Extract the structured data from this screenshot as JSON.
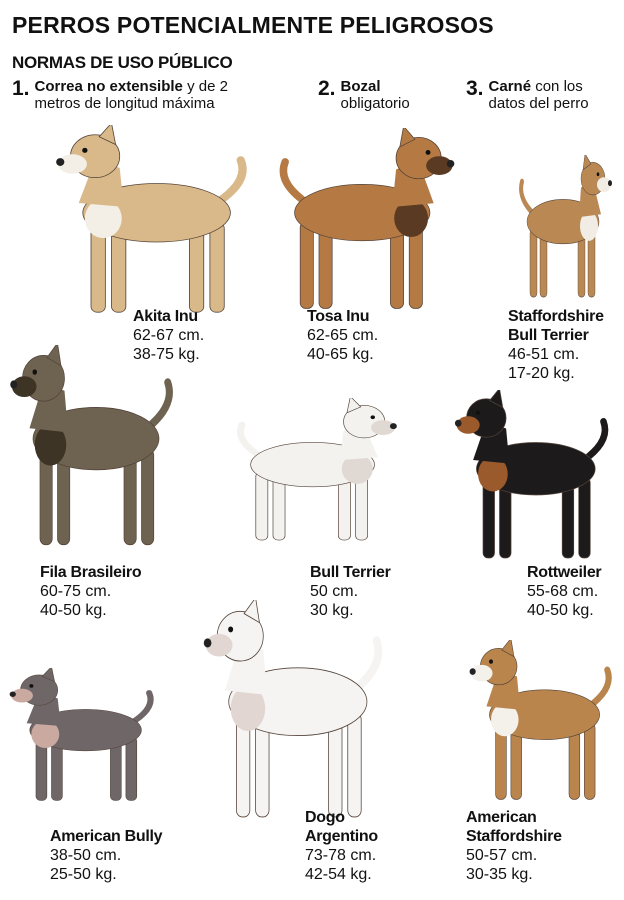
{
  "title": "PERROS POTENCIALMENTE PELIGROSOS",
  "subtitle": "NORMAS DE USO PÚBLICO",
  "rules": [
    {
      "number": "1.",
      "bold": "Correa no extensible",
      "text": " y de 2",
      "line2": "metros de longitud máxima"
    },
    {
      "number": "2.",
      "bold": "Bozal",
      "text": "",
      "line2": "obligatorio"
    },
    {
      "number": "3.",
      "bold": "Carné",
      "text": " con los",
      "line2": "datos del perro"
    }
  ],
  "dogs": [
    {
      "name": "Akita Inu",
      "height": "62-67 cm.",
      "weight": "38-75 kg.",
      "coat": "#d9b98a",
      "accent": "#f4efe6"
    },
    {
      "name": "Tosa Inu",
      "height": "62-65 cm.",
      "weight": "40-65 kg.",
      "coat": "#b57a43",
      "accent": "#5a3a22"
    },
    {
      "name": "Staffordshire Bull Terrier",
      "height": "46-51 cm.",
      "weight": "17-20 kg.",
      "coat": "#b98853",
      "accent": "#f2ede4"
    },
    {
      "name": "Fila Brasileiro",
      "height": "60-75 cm.",
      "weight": "40-50 kg.",
      "coat": "#6e6350",
      "accent": "#3d3426"
    },
    {
      "name": "Bull Terrier",
      "height": "50 cm.",
      "weight": "30 kg.",
      "coat": "#f3f2ef",
      "accent": "#e0d8d3"
    },
    {
      "name": "Rottweiler",
      "height": "55-68 cm.",
      "weight": "40-50 kg.",
      "coat": "#1c1a1b",
      "accent": "#9a5a2c"
    },
    {
      "name": "American Bully",
      "height": "38-50 cm.",
      "weight": "25-50 kg.",
      "coat": "#6f6668",
      "accent": "#c9a9a0"
    },
    {
      "name": "Dogo Argentino",
      "height": "73-78 cm.",
      "weight": "42-54 kg.",
      "coat": "#f5f4f2",
      "accent": "#e2d6d2"
    },
    {
      "name": "American Staffordshire",
      "height": "50-57 cm.",
      "weight": "30-35 kg.",
      "coat": "#b9854c",
      "accent": "#f4f0ea"
    }
  ]
}
